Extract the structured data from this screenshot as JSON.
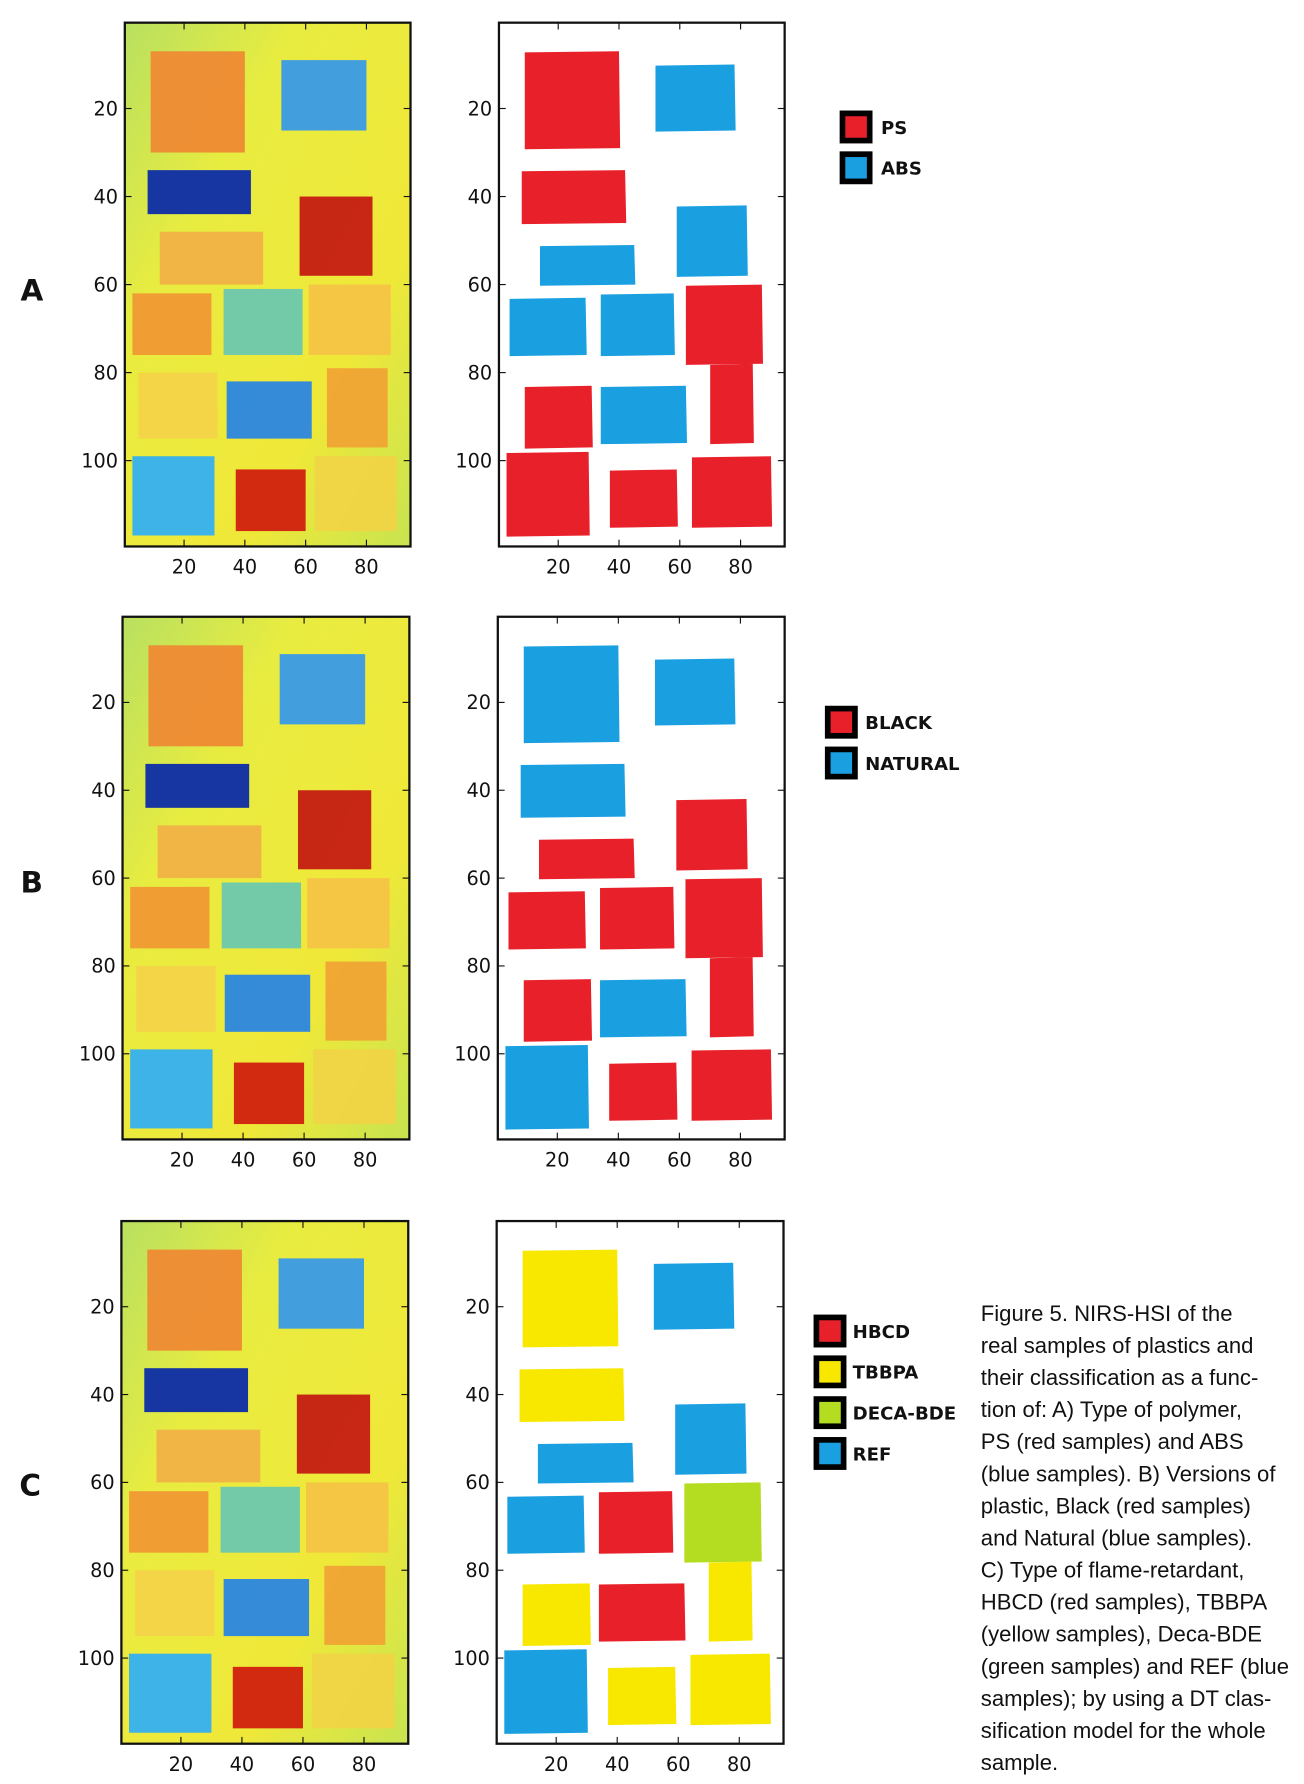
{
  "panels": [
    {
      "label": "A",
      "xlim": [
        0.5,
        94.5
      ],
      "ylim": [
        0.5,
        119.5
      ],
      "xticks": [
        20,
        40,
        60,
        80
      ],
      "yticks": [
        20,
        40,
        60,
        80,
        100
      ],
      "legend": [
        {
          "name": "PS",
          "color": "#e8202a"
        },
        {
          "name": "ABS",
          "color": "#1a9fe0"
        }
      ]
    },
    {
      "label": "B",
      "xlim": [
        0.5,
        94.5
      ],
      "ylim": [
        0.5,
        119.5
      ],
      "xticks": [
        20,
        40,
        60,
        80
      ],
      "yticks": [
        20,
        40,
        60,
        80,
        100
      ],
      "legend": [
        {
          "name": "BLACK",
          "color": "#e8202a"
        },
        {
          "name": "NATURAL",
          "color": "#1a9fe0"
        }
      ]
    },
    {
      "label": "C",
      "xlim": [
        0.5,
        94.5
      ],
      "ylim": [
        0.5,
        119.5
      ],
      "xticks": [
        20,
        40,
        60,
        80
      ],
      "yticks": [
        20,
        40,
        60,
        80,
        100
      ],
      "legend": [
        {
          "name": "HBCD",
          "color": "#e8202a"
        },
        {
          "name": "TBBPA",
          "color": "#f8e800"
        },
        {
          "name": "DECA-BDE",
          "color": "#b4dc20"
        },
        {
          "name": "REF",
          "color": "#1a9fe0"
        }
      ]
    }
  ],
  "caption": [
    "Figure 5. NIRS-HSI of the",
    "real samples of plastics and",
    "their classification as a func-",
    "tion of: A) Type of polymer,",
    "PS (red samples) and ABS",
    "(blue samples). B) Versions of",
    "plastic, Black (red samples)",
    "and Natural (blue samples).",
    "C) Type of flame-retardant,",
    "HBCD (red samples), TBBPA",
    "(yellow samples), Deca-BDE",
    "(green samples) and REF (blue",
    "samples); by using a DT clas-",
    "sification model for the whole",
    "sample."
  ]
}
